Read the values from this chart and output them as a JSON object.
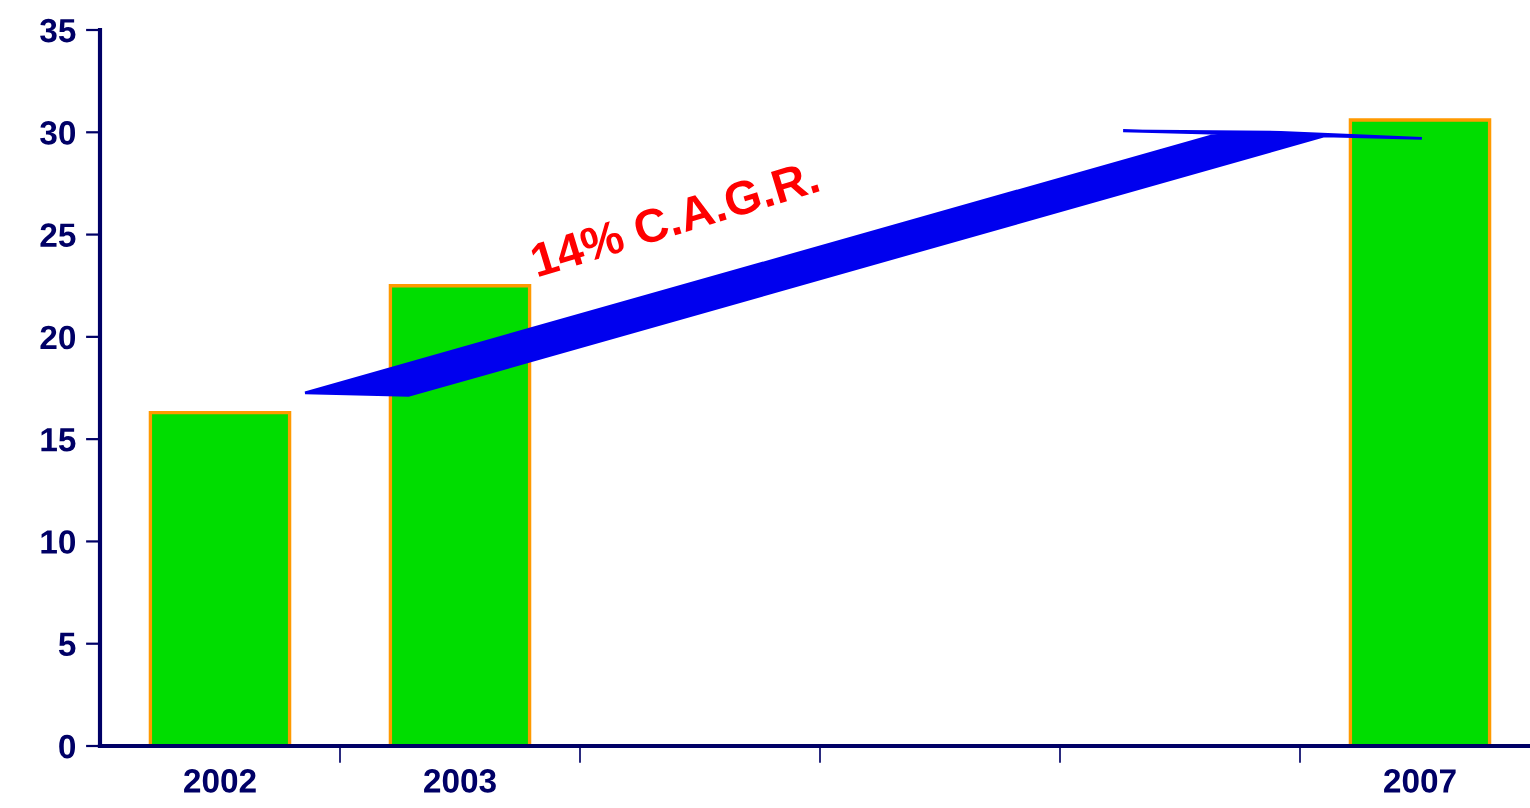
{
  "chart_data": {
    "type": "bar",
    "categories": [
      "2002",
      "2003",
      null,
      null,
      null,
      "2007"
    ],
    "values": [
      16.3,
      22.5,
      null,
      null,
      null,
      30.6
    ],
    "color": "#00dd00",
    "ylim": [
      0,
      35
    ],
    "yticks": [
      0,
      5,
      10,
      15,
      20,
      25,
      30,
      35
    ],
    "grid": false,
    "annotations": [
      "14% C.A.G.R."
    ]
  }
}
